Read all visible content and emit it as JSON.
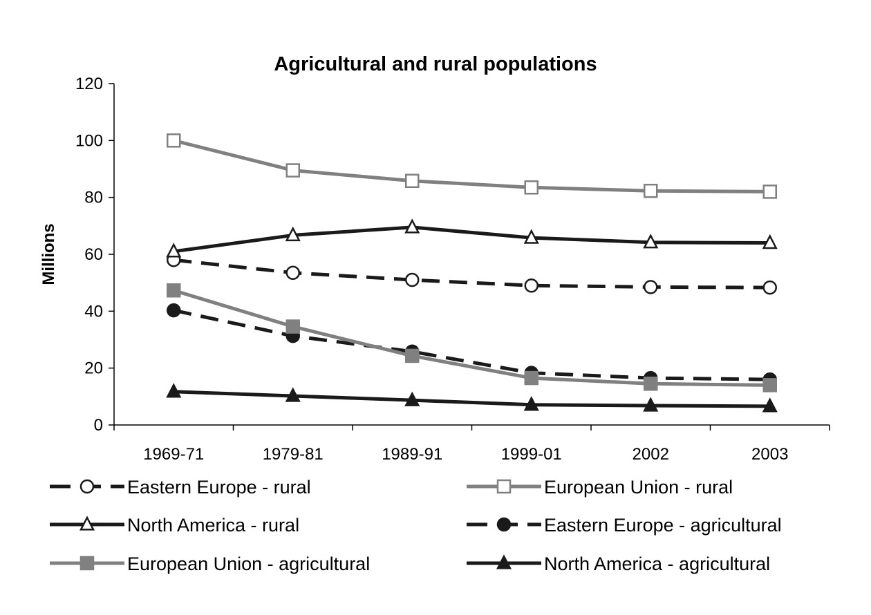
{
  "chart_data": {
    "type": "line",
    "title": "Agricultural and rural populations",
    "xlabel": "",
    "ylabel": "Millions",
    "categories": [
      "1969-71",
      "1979-81",
      "1989-91",
      "1999-01",
      "2002",
      "2003"
    ],
    "ylim": [
      0,
      120
    ],
    "yticks": [
      0,
      20,
      40,
      60,
      80,
      100,
      120
    ],
    "grid": false,
    "legend_position": "bottom",
    "series": [
      {
        "name": "Eastern Europe - rural",
        "values": [
          58,
          53.5,
          51,
          49,
          48.5,
          48.3
        ],
        "color": "#1a1a1a",
        "dash": true,
        "marker": "circle-open"
      },
      {
        "name": "European Union - rural",
        "values": [
          100,
          89.5,
          85.8,
          83.5,
          82.3,
          82
        ],
        "color": "#808080",
        "dash": false,
        "marker": "square-open"
      },
      {
        "name": "North America - rural",
        "values": [
          61,
          66.7,
          69.5,
          65.8,
          64.2,
          64
        ],
        "color": "#1a1a1a",
        "dash": false,
        "marker": "triangle-open"
      },
      {
        "name": "Eastern Europe - agricultural",
        "values": [
          40.3,
          31.3,
          25.8,
          18.3,
          16.5,
          16
        ],
        "color": "#1a1a1a",
        "dash": true,
        "marker": "circle-filled"
      },
      {
        "name": "European Union - agricultural",
        "values": [
          47.3,
          34.6,
          24.3,
          16.5,
          14.5,
          14
        ],
        "color": "#808080",
        "dash": false,
        "marker": "square-filled"
      },
      {
        "name": "North America - agricultural",
        "values": [
          11.7,
          10.2,
          8.7,
          7.1,
          6.8,
          6.6
        ],
        "color": "#1a1a1a",
        "dash": false,
        "marker": "triangle-filled"
      }
    ]
  }
}
